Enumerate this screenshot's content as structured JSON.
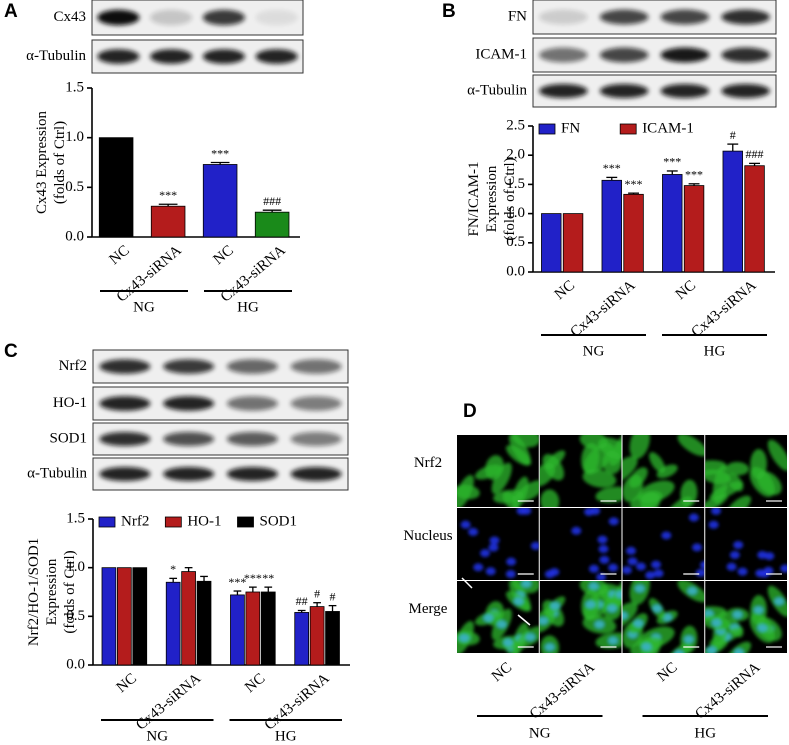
{
  "panel_labels": [
    "A",
    "B",
    "C",
    "D"
  ],
  "blots": {
    "A": [
      "Cx43",
      "α-Tubulin"
    ],
    "B": [
      "FN",
      "ICAM-1",
      "α-Tubulin"
    ],
    "C": [
      "Nrf2",
      "HO-1",
      "SOD1",
      "α-Tubulin"
    ]
  },
  "chart_data": [
    {
      "type": "bar",
      "y_label": [
        "Cx43 Expression",
        "(folds of Ctrl)"
      ],
      "categories": [
        "NC",
        "Cx43-siRNA",
        "NC",
        "Cx43-siRNA"
      ],
      "group_labels": [
        "NG",
        "HG"
      ],
      "values": [
        1.0,
        0.31,
        0.73,
        0.25
      ],
      "errors": [
        0,
        0.02,
        0.02,
        0.02
      ],
      "annotations": [
        null,
        "***",
        "***",
        "###"
      ],
      "colors": [
        "#000000",
        "#b41c1c",
        "#2121c8",
        "#1a8a1a"
      ],
      "ylim": [
        0,
        1.5
      ],
      "yticks": [
        {
          "value": 0,
          "label": "0.0"
        },
        0.5,
        {
          "value": 1,
          "label": "1.0"
        },
        1.5
      ]
    },
    {
      "type": "bar",
      "y_label": [
        "FN/ICAM-1",
        "Expression",
        "(folds of Ctrl)"
      ],
      "categories": [
        "NC",
        "Cx43-siRNA",
        "NC",
        "Cx43-siRNA"
      ],
      "group_labels": [
        "NG",
        "HG"
      ],
      "series": [
        {
          "name": "FN",
          "color": "#2121c8",
          "values": [
            1.0,
            1.57,
            1.67,
            2.07
          ],
          "errors": [
            0,
            0.05,
            0.06,
            0.12
          ],
          "annotations": [
            null,
            "***",
            "***",
            "#"
          ]
        },
        {
          "name": "ICAM-1",
          "color": "#b41c1c",
          "values": [
            1.0,
            1.33,
            1.48,
            1.82
          ],
          "errors": [
            0,
            0.02,
            0.03,
            0.04
          ],
          "annotations": [
            null,
            "***",
            "***",
            "###"
          ]
        }
      ],
      "ylim": [
        0,
        2.5
      ],
      "yticks": [
        {
          "value": 0,
          "label": "0.0"
        },
        0.5,
        {
          "value": 1,
          "label": "1.0"
        },
        1.5,
        {
          "value": 2,
          "label": "2.0"
        },
        2.5
      ]
    },
    {
      "type": "bar",
      "y_label": [
        "Nrf2/HO-1/SOD1",
        "Expression",
        "(folds of Ctrl)"
      ],
      "categories": [
        "NC",
        "Cx43-siRNA",
        "NC",
        "Cx43-siRNA"
      ],
      "group_labels": [
        "NG",
        "HG"
      ],
      "series": [
        {
          "name": "Nrf2",
          "color": "#2121c8",
          "values": [
            1.0,
            0.85,
            0.72,
            0.54
          ],
          "errors": [
            0,
            0.04,
            0.04,
            0.02
          ],
          "annotations": [
            null,
            "*",
            "***",
            "##"
          ]
        },
        {
          "name": "HO-1",
          "color": "#b41c1c",
          "values": [
            1.0,
            0.96,
            0.75,
            0.6
          ],
          "errors": [
            0,
            0.04,
            0.05,
            0.04
          ],
          "annotations": [
            null,
            null,
            "***",
            "#"
          ]
        },
        {
          "name": "SOD1",
          "color": "#000000",
          "values": [
            1.0,
            0.86,
            0.75,
            0.55
          ],
          "errors": [
            0,
            0.05,
            0.05,
            0.06
          ],
          "annotations": [
            null,
            null,
            "**",
            "#"
          ]
        }
      ],
      "ylim": [
        0,
        1.5
      ],
      "yticks": [
        {
          "value": 0,
          "label": "0.0"
        },
        0.5,
        {
          "value": 1,
          "label": "1.0"
        },
        1.5
      ]
    }
  ],
  "microscopy": {
    "rows": [
      "Nrf2",
      "Nucleus",
      "Merge"
    ],
    "columns": [
      "NC",
      "Cx43-siRNA",
      "NC",
      "Cx43-siRNA"
    ],
    "groups": [
      "NG",
      "HG"
    ]
  }
}
